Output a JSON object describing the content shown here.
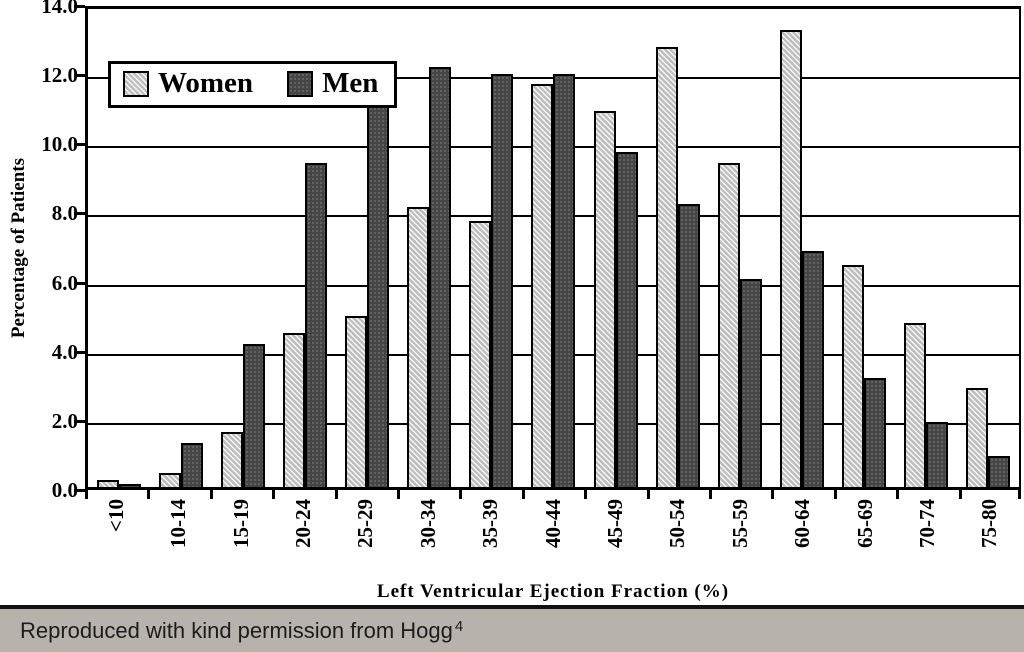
{
  "chart_data": {
    "type": "bar",
    "categories": [
      "<10",
      "10-14",
      "15-19",
      "20-24",
      "25-29",
      "30-34",
      "35-39",
      "40-44",
      "45-49",
      "50-54",
      "55-59",
      "60-64",
      "65-69",
      "70-74",
      "75-80"
    ],
    "series": [
      {
        "name": "Women",
        "key": "women",
        "color": "#c9c9c9",
        "pattern": "diagonal-hatch",
        "values": [
          0.2,
          0.4,
          1.6,
          4.5,
          5.0,
          8.2,
          7.8,
          11.8,
          11.0,
          12.9,
          9.5,
          13.4,
          6.5,
          4.8,
          2.9
        ]
      },
      {
        "name": "Men",
        "key": "men",
        "color": "#454545",
        "pattern": "dots",
        "values": [
          0.1,
          1.3,
          4.2,
          9.5,
          11.2,
          12.3,
          12.1,
          12.1,
          9.8,
          8.3,
          6.1,
          6.9,
          3.2,
          1.9,
          0.9
        ]
      }
    ],
    "title": "",
    "xlabel": "Left Ventricular Ejection Fraction (%)",
    "ylabel": "Percentage of Patients",
    "ylim": [
      0,
      14
    ],
    "ytick_step": 2,
    "ytick_decimals": 1,
    "grid": true,
    "legend_position": "top-left"
  },
  "caption": {
    "text": "Reproduced with kind permission from Hogg",
    "superscript": "4",
    "background_color": "#b7b3ac"
  },
  "colors": {
    "plot_background": "#ffffff",
    "axis": "#000000",
    "women_bar": "#c9c9c9",
    "men_bar": "#454545"
  }
}
